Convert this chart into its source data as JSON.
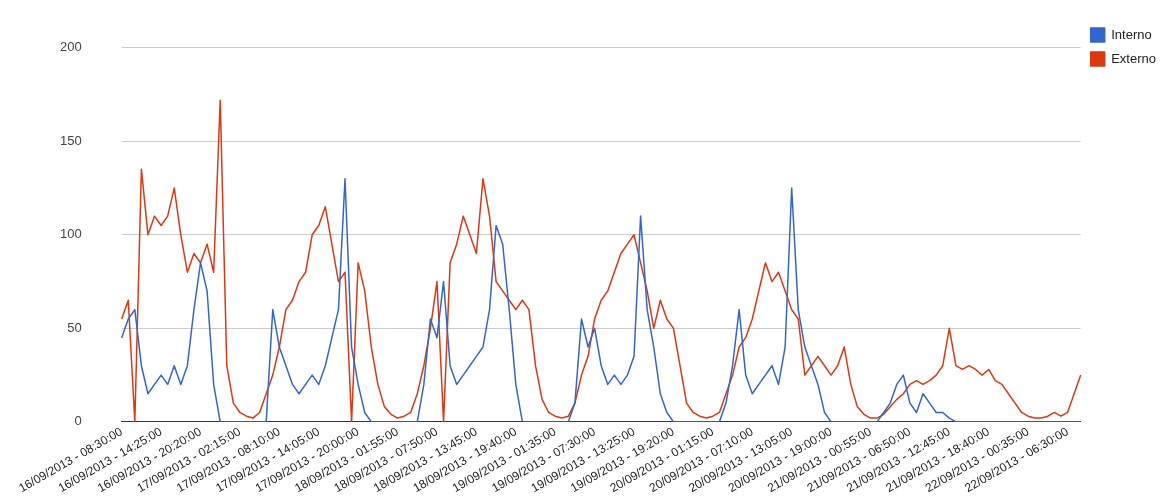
{
  "chart_data": {
    "type": "line",
    "categories": [
      "16/09/2013 - 08:30:00",
      null,
      null,
      null,
      null,
      null,
      "16/09/2013 - 14:25:00",
      null,
      null,
      null,
      null,
      null,
      "16/09/2013 - 20:20:00",
      null,
      null,
      null,
      null,
      null,
      "17/09/2013 - 02:15:00",
      null,
      null,
      null,
      null,
      null,
      "17/09/2013 - 08:10:00",
      null,
      null,
      null,
      null,
      null,
      "17/09/2013 - 14:05:00",
      null,
      null,
      null,
      null,
      null,
      "17/09/2013 - 20:00:00",
      null,
      null,
      null,
      null,
      null,
      "18/09/2013 - 01:55:00",
      null,
      null,
      null,
      null,
      null,
      "18/09/2013 - 07:50:00",
      null,
      null,
      null,
      null,
      null,
      "18/09/2013 - 13:45:00",
      null,
      null,
      null,
      null,
      null,
      "18/09/2013 - 19:40:00",
      null,
      null,
      null,
      null,
      null,
      "19/09/2013 - 01:35:00",
      null,
      null,
      null,
      null,
      null,
      "19/09/2013 - 07:30:00",
      null,
      null,
      null,
      null,
      null,
      "19/09/2013 - 13:25:00",
      null,
      null,
      null,
      null,
      null,
      "19/09/2013 - 19:20:00",
      null,
      null,
      null,
      null,
      null,
      "20/09/2013 - 01:15:00",
      null,
      null,
      null,
      null,
      null,
      "20/09/2013 - 07:10:00",
      null,
      null,
      null,
      null,
      null,
      "20/09/2013 - 13:05:00",
      null,
      null,
      null,
      null,
      null,
      "20/09/2013 - 19:00:00",
      null,
      null,
      null,
      null,
      null,
      "21/09/2013 - 00:55:00",
      null,
      null,
      null,
      null,
      null,
      "21/09/2013 - 06:50:00",
      null,
      null,
      null,
      null,
      null,
      "21/09/2013 - 12:45:00",
      null,
      null,
      null,
      null,
      null,
      "21/09/2013 - 18:40:00",
      null,
      null,
      null,
      null,
      null,
      "22/09/2013 - 00:35:00",
      null,
      null,
      null,
      null,
      null,
      "22/09/2013 - 06:30:00",
      null,
      null
    ],
    "series": [
      {
        "name": "Interno",
        "color": "#3366cc",
        "values": [
          45,
          55,
          60,
          30,
          15,
          20,
          25,
          20,
          30,
          20,
          30,
          60,
          85,
          70,
          20,
          0,
          0,
          0,
          0,
          0,
          0,
          0,
          0,
          60,
          40,
          30,
          20,
          15,
          20,
          25,
          20,
          30,
          45,
          60,
          130,
          40,
          20,
          5,
          0,
          0,
          0,
          0,
          0,
          0,
          0,
          0,
          20,
          55,
          45,
          75,
          30,
          20,
          25,
          30,
          35,
          40,
          60,
          105,
          95,
          60,
          20,
          0,
          0,
          0,
          0,
          0,
          0,
          0,
          0,
          10,
          55,
          40,
          50,
          30,
          20,
          25,
          20,
          25,
          35,
          110,
          60,
          40,
          15,
          5,
          0,
          0,
          0,
          0,
          0,
          0,
          0,
          0,
          10,
          30,
          60,
          25,
          15,
          20,
          25,
          30,
          20,
          40,
          125,
          60,
          40,
          30,
          20,
          5,
          0,
          0,
          0,
          0,
          0,
          0,
          0,
          0,
          5,
          10,
          20,
          25,
          10,
          5,
          15,
          10,
          5,
          5,
          2,
          0,
          0,
          0,
          0,
          0,
          0,
          0,
          0,
          0,
          0,
          0,
          0,
          0,
          0,
          0,
          0,
          0,
          0,
          0,
          0
        ]
      },
      {
        "name": "Externo",
        "color": "#dc3912",
        "values": [
          55,
          65,
          0,
          135,
          100,
          110,
          105,
          110,
          125,
          100,
          80,
          90,
          85,
          95,
          80,
          172,
          30,
          10,
          5,
          3,
          2,
          5,
          15,
          25,
          40,
          60,
          65,
          75,
          80,
          100,
          105,
          115,
          95,
          75,
          80,
          0,
          85,
          70,
          40,
          20,
          8,
          4,
          2,
          3,
          5,
          15,
          30,
          50,
          75,
          0,
          85,
          95,
          110,
          100,
          90,
          130,
          110,
          75,
          70,
          65,
          60,
          65,
          60,
          30,
          12,
          5,
          3,
          2,
          3,
          10,
          25,
          35,
          55,
          65,
          70,
          80,
          90,
          95,
          100,
          85,
          70,
          50,
          65,
          55,
          50,
          30,
          10,
          5,
          3,
          2,
          3,
          5,
          15,
          25,
          40,
          45,
          55,
          70,
          85,
          75,
          80,
          70,
          60,
          55,
          25,
          30,
          35,
          30,
          25,
          30,
          40,
          20,
          8,
          4,
          2,
          2,
          4,
          8,
          12,
          15,
          20,
          22,
          20,
          22,
          25,
          30,
          50,
          30,
          28,
          30,
          28,
          25,
          28,
          22,
          20,
          15,
          10,
          5,
          3,
          2,
          2,
          3,
          5,
          3,
          5,
          15,
          25
        ]
      }
    ],
    "ylim": [
      0,
      200
    ],
    "yticks": [
      0,
      50,
      100,
      150,
      200
    ],
    "grid": "y",
    "legend": "top right",
    "marker": "none",
    "line_style": "solid"
  }
}
